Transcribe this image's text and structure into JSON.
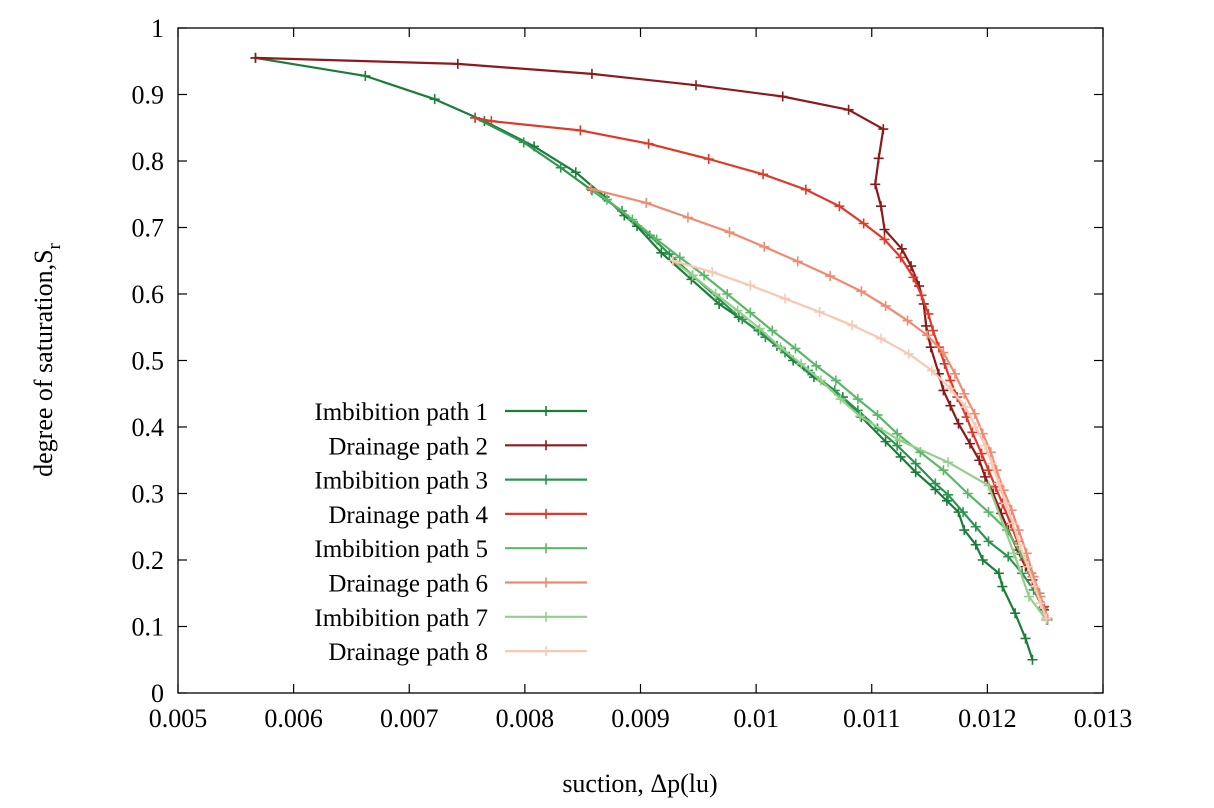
{
  "chart_data": {
    "type": "line",
    "title": "",
    "xlabel": "suction, Δp(lu)",
    "ylabel_main": "degree of saturation,S",
    "ylabel_sub": "r",
    "xlim": [
      0.005,
      0.013
    ],
    "ylim": [
      0,
      1
    ],
    "xticks": [
      0.005,
      0.006,
      0.007,
      0.008,
      0.009,
      0.01,
      0.011,
      0.012,
      0.013
    ],
    "xtick_labels": [
      "0.005",
      "0.006",
      "0.007",
      "0.008",
      "0.009",
      "0.01",
      "0.011",
      "0.012",
      "0.013"
    ],
    "yticks": [
      0,
      0.1,
      0.2,
      0.3,
      0.4,
      0.5,
      0.6,
      0.7,
      0.8,
      0.9,
      1
    ],
    "ytick_labels": [
      "0",
      "0.1",
      "0.2",
      "0.3",
      "0.4",
      "0.5",
      "0.6",
      "0.7",
      "0.8",
      "0.9",
      "1"
    ],
    "grid": false,
    "legend_position": "bottom-left",
    "marker": "plus",
    "series": [
      {
        "name": "Imbibition path 1",
        "color": "#1a7d3a",
        "points": [
          [
            0.00567,
            0.955
          ],
          [
            0.00662,
            0.928
          ],
          [
            0.00722,
            0.893
          ],
          [
            0.00765,
            0.86
          ],
          [
            0.00808,
            0.822
          ],
          [
            0.00844,
            0.783
          ],
          [
            0.00869,
            0.746
          ],
          [
            0.00886,
            0.718
          ],
          [
            0.00897,
            0.702
          ],
          [
            0.00918,
            0.662
          ],
          [
            0.00944,
            0.622
          ],
          [
            0.00968,
            0.585
          ],
          [
            0.00985,
            0.565
          ],
          [
            0.01002,
            0.545
          ],
          [
            0.01018,
            0.522
          ],
          [
            0.01032,
            0.5
          ],
          [
            0.0105,
            0.475
          ],
          [
            0.01075,
            0.445
          ],
          [
            0.01091,
            0.415
          ],
          [
            0.01112,
            0.378
          ],
          [
            0.01125,
            0.355
          ],
          [
            0.01138,
            0.332
          ],
          [
            0.01155,
            0.306
          ],
          [
            0.01165,
            0.289
          ],
          [
            0.01175,
            0.272
          ],
          [
            0.0118,
            0.245
          ],
          [
            0.0119,
            0.223
          ],
          [
            0.01196,
            0.2
          ],
          [
            0.0121,
            0.18
          ],
          [
            0.01213,
            0.16
          ],
          [
            0.01224,
            0.12
          ],
          [
            0.01233,
            0.082
          ],
          [
            0.01239,
            0.05
          ]
        ]
      },
      {
        "name": "Drainage path 2",
        "color": "#8c1a1a",
        "points": [
          [
            0.00567,
            0.955
          ],
          [
            0.00742,
            0.946
          ],
          [
            0.00858,
            0.931
          ],
          [
            0.00948,
            0.914
          ],
          [
            0.01023,
            0.897
          ],
          [
            0.0108,
            0.877
          ],
          [
            0.0111,
            0.848
          ],
          [
            0.01106,
            0.804
          ],
          [
            0.01103,
            0.765
          ],
          [
            0.01108,
            0.732
          ],
          [
            0.01111,
            0.697
          ],
          [
            0.01126,
            0.668
          ],
          [
            0.01134,
            0.642
          ],
          [
            0.01141,
            0.612
          ],
          [
            0.01145,
            0.585
          ],
          [
            0.01147,
            0.552
          ],
          [
            0.01151,
            0.52
          ],
          [
            0.01158,
            0.48
          ],
          [
            0.01162,
            0.455
          ],
          [
            0.01168,
            0.432
          ],
          [
            0.01175,
            0.405
          ],
          [
            0.01185,
            0.375
          ],
          [
            0.01193,
            0.35
          ],
          [
            0.01198,
            0.325
          ],
          [
            0.01205,
            0.3
          ],
          [
            0.01212,
            0.27
          ],
          [
            0.01218,
            0.245
          ],
          [
            0.01226,
            0.215
          ],
          [
            0.01233,
            0.19
          ],
          [
            0.01239,
            0.17
          ],
          [
            0.01244,
            0.15
          ],
          [
            0.01249,
            0.125
          ],
          [
            0.01251,
            0.112
          ]
        ]
      },
      {
        "name": "Imbibition path 3",
        "color": "#2e9550",
        "points": [
          [
            0.00757,
            0.865
          ],
          [
            0.00799,
            0.828
          ],
          [
            0.00831,
            0.79
          ],
          [
            0.00858,
            0.756
          ],
          [
            0.00884,
            0.725
          ],
          [
            0.00908,
            0.688
          ],
          [
            0.00925,
            0.66
          ],
          [
            0.00945,
            0.628
          ],
          [
            0.00968,
            0.592
          ],
          [
            0.00988,
            0.562
          ],
          [
            0.01008,
            0.535
          ],
          [
            0.01025,
            0.512
          ],
          [
            0.01045,
            0.485
          ],
          [
            0.01068,
            0.455
          ],
          [
            0.01088,
            0.425
          ],
          [
            0.01105,
            0.398
          ],
          [
            0.01122,
            0.372
          ],
          [
            0.01138,
            0.345
          ],
          [
            0.01155,
            0.315
          ],
          [
            0.01166,
            0.298
          ],
          [
            0.01179,
            0.272
          ],
          [
            0.0119,
            0.25
          ],
          [
            0.01201,
            0.228
          ],
          [
            0.01218,
            0.205
          ],
          [
            0.0123,
            0.18
          ],
          [
            0.0124,
            0.155
          ],
          [
            0.01248,
            0.128
          ],
          [
            0.01252,
            0.11
          ]
        ]
      },
      {
        "name": "Drainage path 4",
        "color": "#e0392a",
        "points": [
          [
            0.00757,
            0.865
          ],
          [
            0.00771,
            0.86
          ],
          [
            0.00848,
            0.846
          ],
          [
            0.00907,
            0.826
          ],
          [
            0.00959,
            0.803
          ],
          [
            0.01006,
            0.78
          ],
          [
            0.01043,
            0.757
          ],
          [
            0.01072,
            0.732
          ],
          [
            0.01093,
            0.706
          ],
          [
            0.01111,
            0.682
          ],
          [
            0.01125,
            0.655
          ],
          [
            0.01136,
            0.625
          ],
          [
            0.01143,
            0.598
          ],
          [
            0.01149,
            0.57
          ],
          [
            0.01153,
            0.545
          ],
          [
            0.01158,
            0.52
          ],
          [
            0.01163,
            0.495
          ],
          [
            0.01168,
            0.47
          ],
          [
            0.01174,
            0.445
          ],
          [
            0.01182,
            0.415
          ],
          [
            0.01187,
            0.392
          ],
          [
            0.01195,
            0.36
          ],
          [
            0.01201,
            0.335
          ],
          [
            0.01207,
            0.31
          ],
          [
            0.01213,
            0.285
          ],
          [
            0.0122,
            0.255
          ],
          [
            0.01226,
            0.228
          ],
          [
            0.01232,
            0.2
          ],
          [
            0.01239,
            0.175
          ],
          [
            0.01245,
            0.15
          ],
          [
            0.01249,
            0.13
          ],
          [
            0.01252,
            0.112
          ]
        ]
      },
      {
        "name": "Imbibition path 5",
        "color": "#5cb868",
        "points": [
          [
            0.00857,
            0.758
          ],
          [
            0.00871,
            0.742
          ],
          [
            0.00893,
            0.712
          ],
          [
            0.00914,
            0.682
          ],
          [
            0.00934,
            0.655
          ],
          [
            0.00955,
            0.628
          ],
          [
            0.00975,
            0.6
          ],
          [
            0.00995,
            0.572
          ],
          [
            0.01014,
            0.545
          ],
          [
            0.01034,
            0.518
          ],
          [
            0.01052,
            0.492
          ],
          [
            0.01069,
            0.47
          ],
          [
            0.01088,
            0.442
          ],
          [
            0.01105,
            0.418
          ],
          [
            0.01122,
            0.39
          ],
          [
            0.01142,
            0.362
          ],
          [
            0.01162,
            0.335
          ],
          [
            0.01183,
            0.3
          ],
          [
            0.01201,
            0.272
          ],
          [
            0.01217,
            0.245
          ],
          [
            0.01229,
            0.21
          ],
          [
            0.01238,
            0.18
          ],
          [
            0.01245,
            0.15
          ],
          [
            0.01251,
            0.11
          ]
        ]
      },
      {
        "name": "Drainage path 6",
        "color": "#f08a70",
        "points": [
          [
            0.00857,
            0.758
          ],
          [
            0.00905,
            0.737
          ],
          [
            0.00941,
            0.715
          ],
          [
            0.00977,
            0.693
          ],
          [
            0.01007,
            0.671
          ],
          [
            0.01036,
            0.649
          ],
          [
            0.01064,
            0.627
          ],
          [
            0.01091,
            0.604
          ],
          [
            0.01112,
            0.582
          ],
          [
            0.01131,
            0.56
          ],
          [
            0.01148,
            0.538
          ],
          [
            0.01162,
            0.512
          ],
          [
            0.01172,
            0.48
          ],
          [
            0.0118,
            0.45
          ],
          [
            0.01189,
            0.42
          ],
          [
            0.01196,
            0.39
          ],
          [
            0.01203,
            0.362
          ],
          [
            0.01208,
            0.335
          ],
          [
            0.01214,
            0.305
          ],
          [
            0.01221,
            0.275
          ],
          [
            0.01227,
            0.245
          ],
          [
            0.01234,
            0.21
          ],
          [
            0.0124,
            0.175
          ],
          [
            0.01246,
            0.145
          ],
          [
            0.01252,
            0.112
          ]
        ]
      },
      {
        "name": "Imbibition path 7",
        "color": "#92d08c",
        "points": [
          [
            0.00928,
            0.65
          ],
          [
            0.00945,
            0.628
          ],
          [
            0.00965,
            0.6
          ],
          [
            0.00984,
            0.575
          ],
          [
            0.01003,
            0.548
          ],
          [
            0.01021,
            0.52
          ],
          [
            0.01039,
            0.495
          ],
          [
            0.01056,
            0.47
          ],
          [
            0.01073,
            0.442
          ],
          [
            0.0109,
            0.416
          ],
          [
            0.01124,
            0.38
          ],
          [
            0.01166,
            0.347
          ],
          [
            0.01201,
            0.312
          ],
          [
            0.01223,
            0.21
          ],
          [
            0.01236,
            0.145
          ],
          [
            0.01251,
            0.11
          ]
        ]
      },
      {
        "name": "Drainage path 8",
        "color": "#f8c8b4",
        "points": [
          [
            0.00928,
            0.65
          ],
          [
            0.00962,
            0.633
          ],
          [
            0.00995,
            0.613
          ],
          [
            0.01025,
            0.593
          ],
          [
            0.01055,
            0.573
          ],
          [
            0.01083,
            0.553
          ],
          [
            0.01108,
            0.533
          ],
          [
            0.01132,
            0.51
          ],
          [
            0.01152,
            0.485
          ],
          [
            0.01168,
            0.458
          ],
          [
            0.01181,
            0.43
          ],
          [
            0.0119,
            0.4
          ],
          [
            0.01198,
            0.372
          ],
          [
            0.01204,
            0.345
          ],
          [
            0.0121,
            0.315
          ],
          [
            0.01216,
            0.285
          ],
          [
            0.01222,
            0.255
          ],
          [
            0.01228,
            0.222
          ],
          [
            0.01235,
            0.19
          ],
          [
            0.01241,
            0.16
          ],
          [
            0.01246,
            0.135
          ],
          [
            0.01251,
            0.112
          ]
        ]
      }
    ]
  }
}
